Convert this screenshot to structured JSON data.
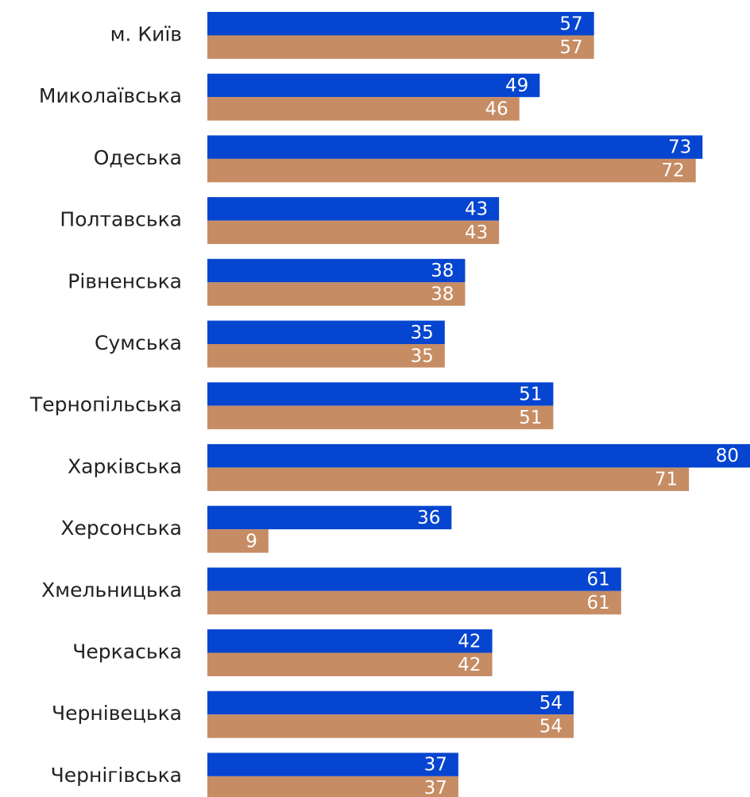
{
  "chart_data": {
    "type": "bar",
    "orientation": "horizontal",
    "categories": [
      "м. Київ",
      "Миколаївська",
      "Одеська",
      "Полтавська",
      "Рівненська",
      "Сумська",
      "Тернопільська",
      "Харківська",
      "Херсонська",
      "Хмельницька",
      "Черкаська",
      "Чернівецька",
      "Чернігівська"
    ],
    "series": [
      {
        "color": "#0645d0",
        "values": [
          57,
          49,
          73,
          43,
          38,
          35,
          51,
          80,
          36,
          61,
          42,
          54,
          37
        ]
      },
      {
        "color": "#c68c64",
        "values": [
          57,
          46,
          72,
          43,
          38,
          35,
          51,
          71,
          9,
          61,
          42,
          54,
          37
        ]
      }
    ],
    "xlim": [
      0,
      80
    ]
  }
}
